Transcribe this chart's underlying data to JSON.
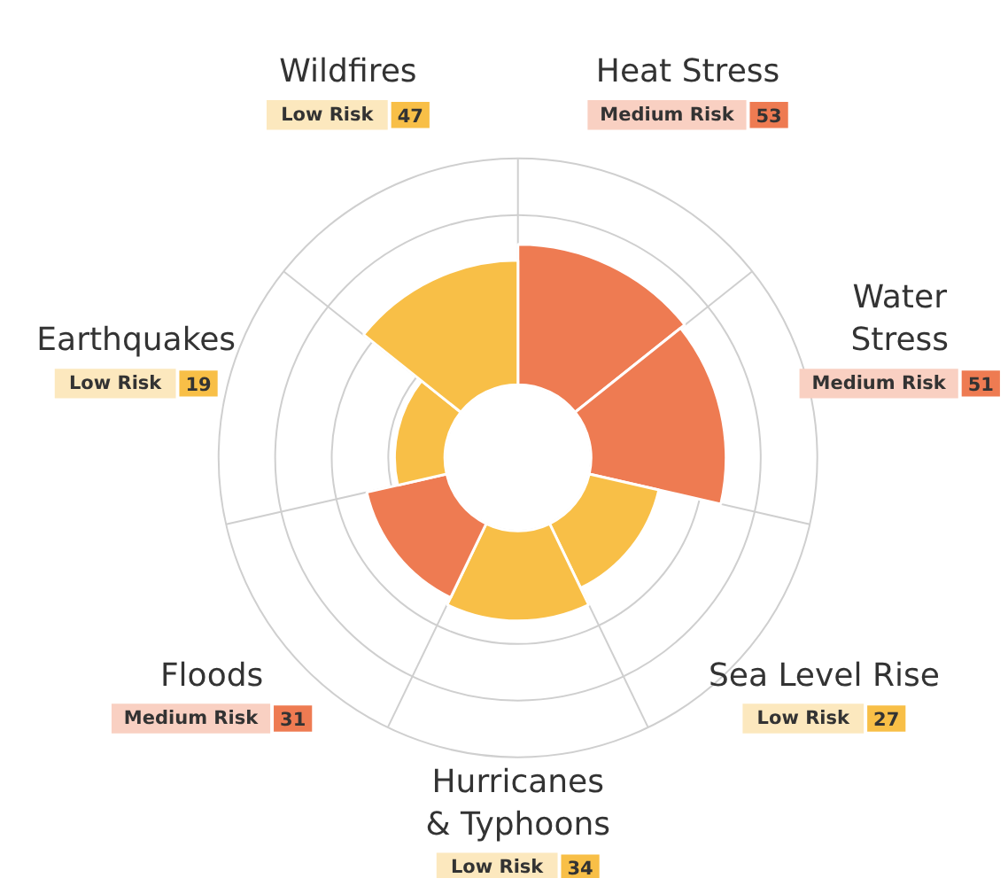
{
  "chart_data": {
    "type": "other",
    "categories": [
      "Heat Stress",
      "Water\nStress",
      "Sea Level Rise",
      "Hurricanes\n& Typhoons",
      "Floods",
      "Earthquakes",
      "Wildfires"
    ],
    "values": [
      53,
      51,
      27,
      34,
      31,
      19,
      47
    ],
    "colors": [
      "#ee7b52",
      "#ee7b52",
      "#f8bf47",
      "#f8bf47",
      "#ee7b52",
      "#f8bf47",
      "#f8bf47"
    ],
    "data_labels": true,
    "annotations": [
      {
        "text": "Medium Risk",
        "x": "Heat Stress"
      },
      {
        "text": "Medium Risk",
        "x": "Water\nStress"
      },
      {
        "text": "Low Risk",
        "x": "Sea Level Rise"
      },
      {
        "text": "Low Risk",
        "x": "Hurricanes\n& Typhoons"
      },
      {
        "text": "Medium Risk",
        "x": "Floods"
      },
      {
        "text": "Low Risk",
        "x": "Earthquakes"
      },
      {
        "text": "Low Risk",
        "x": "Wildfires"
      }
    ]
  }
}
